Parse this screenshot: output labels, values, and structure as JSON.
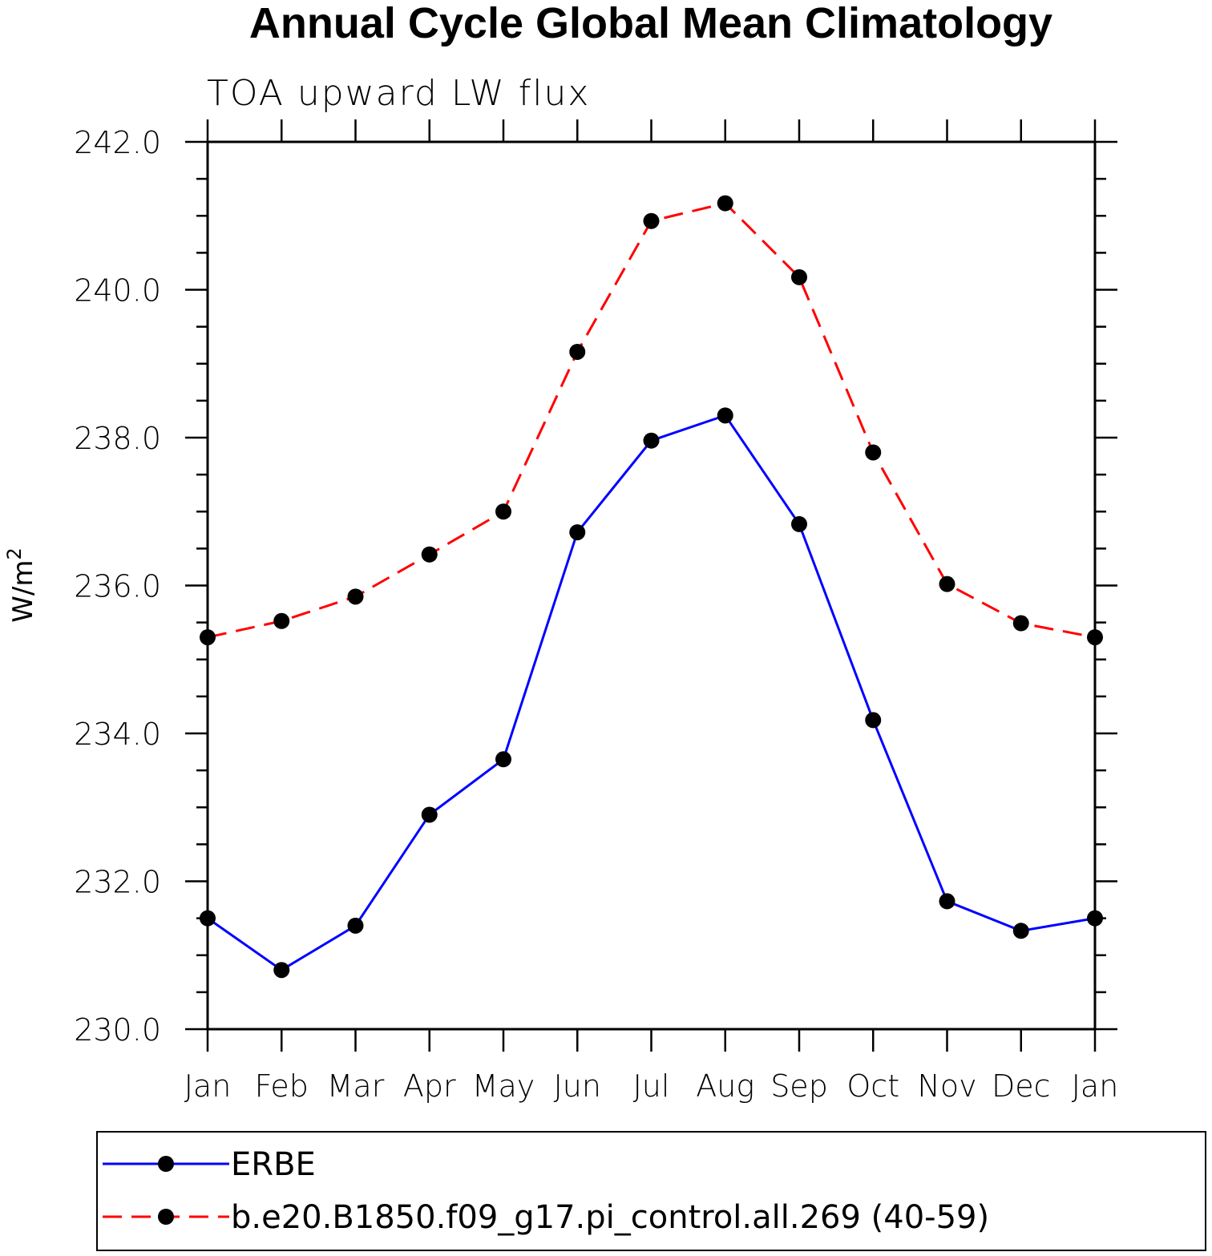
{
  "chart_data": {
    "type": "line",
    "title": "Annual Cycle Global Mean Climatology",
    "subtitle": "TOA upward LW flux",
    "ylabel": "W/m",
    "ylabel_superscript": "2",
    "xlabel": "",
    "categories": [
      "Jan",
      "Feb",
      "Mar",
      "Apr",
      "May",
      "Jun",
      "Jul",
      "Aug",
      "Sep",
      "Oct",
      "Nov",
      "Dec",
      "Jan"
    ],
    "ylim": [
      230.0,
      242.0
    ],
    "yticks": [
      "230.0",
      "232.0",
      "234.0",
      "236.0",
      "238.0",
      "240.0",
      "242.0"
    ],
    "grid": false,
    "legend_position": "bottom",
    "series": [
      {
        "name": "ERBE",
        "color": "#0000ff",
        "dash": "solid",
        "marker": "circle",
        "values": [
          231.5,
          230.8,
          231.4,
          232.9,
          233.65,
          236.72,
          237.96,
          238.3,
          236.83,
          234.18,
          231.73,
          231.33,
          231.5
        ]
      },
      {
        "name": "b.e20.B1850.f09_g17.pi_control.all.269 (40-59)",
        "color": "#ff0000",
        "dash": "dashed",
        "marker": "circle",
        "values": [
          235.3,
          235.52,
          235.85,
          236.42,
          237.0,
          239.16,
          240.93,
          241.17,
          240.17,
          237.8,
          236.02,
          235.49,
          235.3
        ]
      }
    ]
  }
}
